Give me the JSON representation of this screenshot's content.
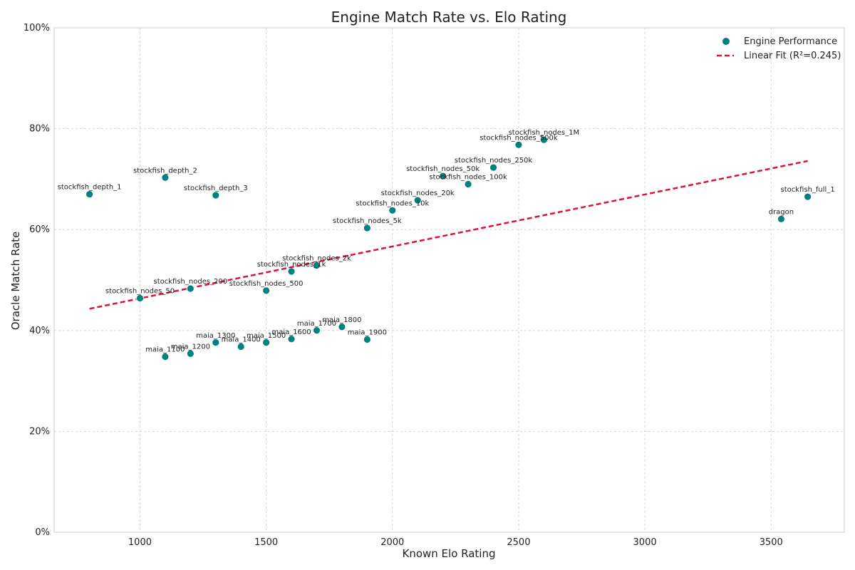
{
  "chart_data": {
    "type": "scatter",
    "title": "Engine Match Rate vs. Elo Rating",
    "xlabel": "Known Elo Rating",
    "ylabel": "Oracle Match Rate",
    "xlim": [
      660,
      3790
    ],
    "ylim": [
      0,
      1
    ],
    "xticks": [
      1000,
      1500,
      2000,
      2500,
      3000,
      3500
    ],
    "yticks": [
      0,
      0.2,
      0.4,
      0.6,
      0.8,
      1.0
    ],
    "ytick_labels": [
      "0%",
      "20%",
      "40%",
      "60%",
      "80%",
      "100%"
    ],
    "grid": true,
    "legend_position": "top-right",
    "series": [
      {
        "name": "Engine Performance",
        "color": "#008080",
        "points": [
          {
            "label": "stockfish_depth_1",
            "x": 800,
            "y": 0.67
          },
          {
            "label": "stockfish_depth_2",
            "x": 1100,
            "y": 0.703
          },
          {
            "label": "stockfish_depth_3",
            "x": 1300,
            "y": 0.668
          },
          {
            "label": "stockfish_nodes_50",
            "x": 1000,
            "y": 0.464
          },
          {
            "label": "stockfish_nodes_200",
            "x": 1200,
            "y": 0.483
          },
          {
            "label": "stockfish_nodes_500",
            "x": 1500,
            "y": 0.479
          },
          {
            "label": "stockfish_nodes_1k",
            "x": 1600,
            "y": 0.517
          },
          {
            "label": "stockfish_nodes_2k",
            "x": 1700,
            "y": 0.529
          },
          {
            "label": "stockfish_nodes_5k",
            "x": 1900,
            "y": 0.603
          },
          {
            "label": "stockfish_nodes_10k",
            "x": 2000,
            "y": 0.638
          },
          {
            "label": "stockfish_nodes_20k",
            "x": 2100,
            "y": 0.658
          },
          {
            "label": "stockfish_nodes_50k",
            "x": 2200,
            "y": 0.706
          },
          {
            "label": "stockfish_nodes_100k",
            "x": 2300,
            "y": 0.69
          },
          {
            "label": "stockfish_nodes_250k",
            "x": 2400,
            "y": 0.723
          },
          {
            "label": "stockfish_nodes_500k",
            "x": 2500,
            "y": 0.768
          },
          {
            "label": "stockfish_nodes_1M",
            "x": 2600,
            "y": 0.778
          },
          {
            "label": "dragon",
            "x": 3540,
            "y": 0.621
          },
          {
            "label": "stockfish_full_1",
            "x": 3645,
            "y": 0.665
          },
          {
            "label": "maia_1100",
            "x": 1100,
            "y": 0.348
          },
          {
            "label": "maia_1200",
            "x": 1200,
            "y": 0.354
          },
          {
            "label": "maia_1300",
            "x": 1300,
            "y": 0.376
          },
          {
            "label": "maia_1400",
            "x": 1400,
            "y": 0.368
          },
          {
            "label": "maia_1500",
            "x": 1500,
            "y": 0.376
          },
          {
            "label": "maia_1600",
            "x": 1600,
            "y": 0.383
          },
          {
            "label": "maia_1700",
            "x": 1700,
            "y": 0.4
          },
          {
            "label": "maia_1800",
            "x": 1800,
            "y": 0.407
          },
          {
            "label": "maia_1900",
            "x": 1900,
            "y": 0.382
          }
        ]
      },
      {
        "name": "Linear Fit (R²=0.245)",
        "color": "#dc143c",
        "style": "dashed",
        "x": [
          800,
          3645
        ],
        "y": [
          0.443,
          0.736
        ]
      }
    ]
  }
}
